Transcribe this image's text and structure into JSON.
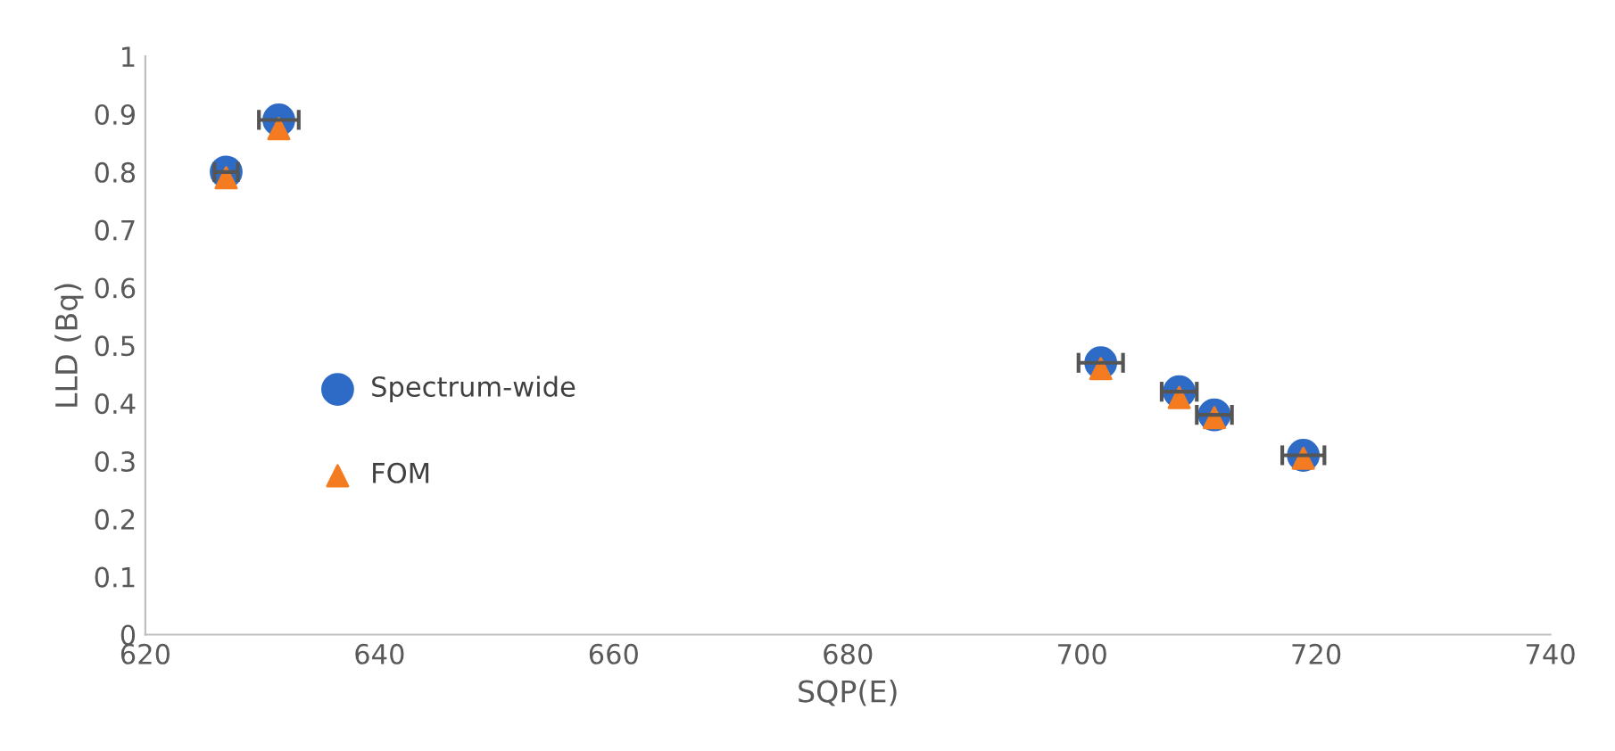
{
  "chart_data": {
    "type": "scatter",
    "xlabel": "SQP(E)",
    "ylabel": "LLD (Bq)",
    "xlim": [
      620,
      740
    ],
    "xticks": [
      620,
      640,
      660,
      680,
      700,
      720,
      740
    ],
    "ylim": [
      0,
      1
    ],
    "yticks": [
      0,
      {
        "value": 0.1,
        "label": "0.1"
      },
      {
        "value": 0.2,
        "label": "0.2"
      },
      {
        "value": 0.3,
        "label": "0.3"
      },
      {
        "value": 0.4,
        "label": "0.4"
      },
      {
        "value": 0.5,
        "label": "0.5"
      },
      {
        "value": 0.6,
        "label": "0.6"
      },
      {
        "value": 0.7,
        "label": "0.7"
      },
      {
        "value": 0.8,
        "label": "0.8"
      },
      {
        "value": 0.9,
        "label": "0.9"
      },
      1
    ],
    "grid": false,
    "legend": "left",
    "series": [
      {
        "name": "Spectrum-wide",
        "color": "#2e6bc6",
        "marker": "circle",
        "x": [
          626.9,
          631.4,
          701.6,
          708.3,
          711.3,
          718.9
        ],
        "values": [
          0.8,
          0.89,
          0.47,
          0.42,
          0.38,
          0.31
        ],
        "xerrors": [
          1.0,
          1.7,
          1.9,
          1.5,
          1.5,
          1.8
        ]
      },
      {
        "name": "FOM",
        "color": "#f47b20",
        "marker": "triangle",
        "x": [
          626.9,
          631.4,
          701.6,
          708.3,
          711.3,
          718.9
        ],
        "values": [
          0.79,
          0.875,
          0.46,
          0.41,
          0.375,
          0.305
        ]
      }
    ]
  }
}
